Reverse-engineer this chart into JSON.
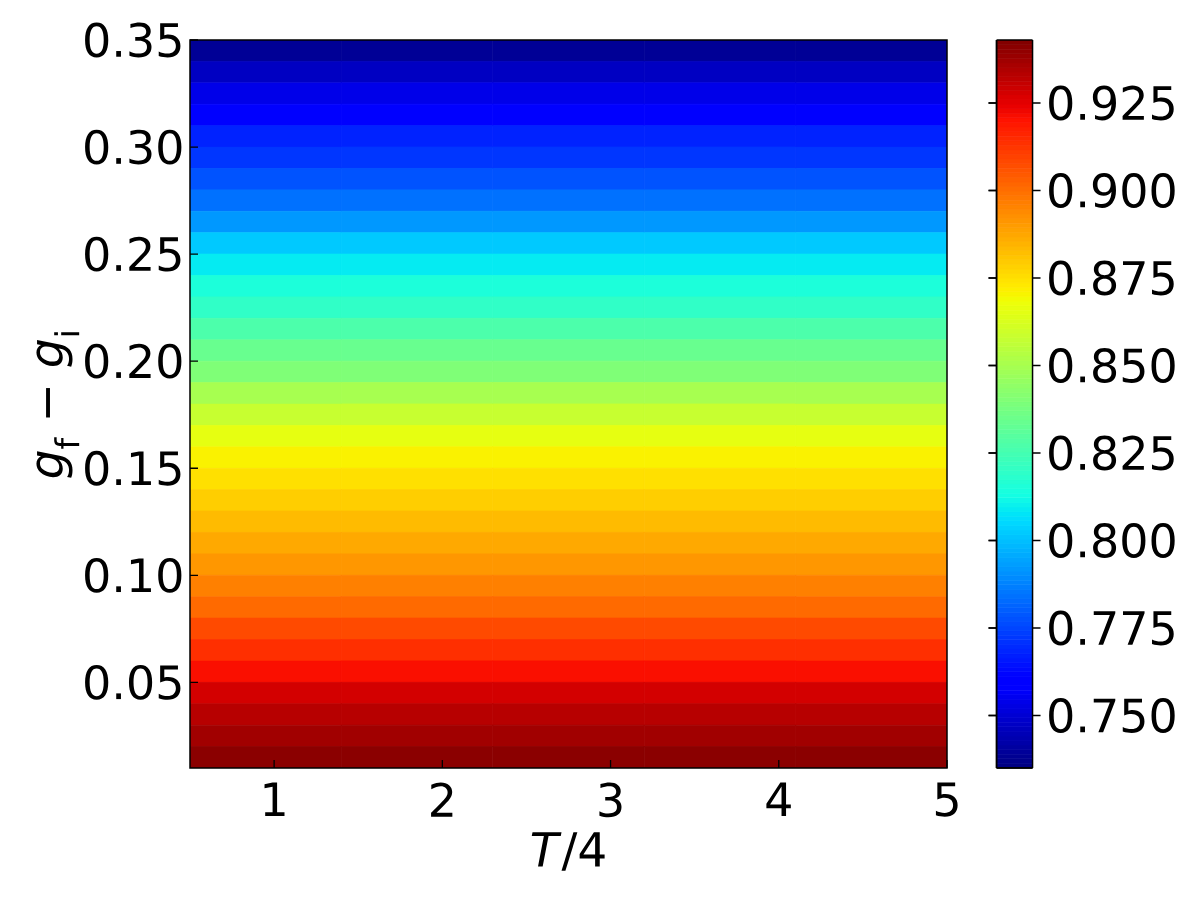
{
  "chart_data": {
    "type": "heatmap",
    "xlabel": "*T*/4",
    "ylabel": "*g*$_{f}$ − *g*$_{i}$",
    "x": [
      0.95,
      1.85,
      2.75,
      3.65,
      4.55
    ],
    "y": [
      0.345,
      0.335,
      0.325,
      0.315,
      0.305,
      0.295,
      0.285,
      0.275,
      0.265,
      0.255,
      0.245,
      0.235,
      0.225,
      0.215,
      0.205,
      0.195,
      0.185,
      0.175,
      0.165,
      0.155,
      0.145,
      0.135,
      0.125,
      0.115,
      0.105,
      0.095,
      0.085,
      0.075,
      0.065,
      0.055,
      0.045,
      0.035,
      0.025,
      0.015
    ],
    "cells": [
      [
        0.739,
        0.739,
        0.739,
        0.739,
        0.739
      ],
      [
        0.747,
        0.747,
        0.747,
        0.747,
        0.747
      ],
      [
        0.754,
        0.754,
        0.754,
        0.754,
        0.754
      ],
      [
        0.761,
        0.761,
        0.761,
        0.761,
        0.761
      ],
      [
        0.768,
        0.768,
        0.768,
        0.768,
        0.768
      ],
      [
        0.772,
        0.772,
        0.772,
        0.772,
        0.772
      ],
      [
        0.778,
        0.778,
        0.778,
        0.778,
        0.778
      ],
      [
        0.784,
        0.784,
        0.784,
        0.784,
        0.784
      ],
      [
        0.792,
        0.792,
        0.792,
        0.792,
        0.792
      ],
      [
        0.802,
        0.802,
        0.802,
        0.802,
        0.802
      ],
      [
        0.809,
        0.809,
        0.809,
        0.809,
        0.809
      ],
      [
        0.815,
        0.815,
        0.815,
        0.815,
        0.815
      ],
      [
        0.82,
        0.82,
        0.82,
        0.82,
        0.82
      ],
      [
        0.827,
        0.827,
        0.827,
        0.827,
        0.827
      ],
      [
        0.834,
        0.834,
        0.834,
        0.834,
        0.834
      ],
      [
        0.84,
        0.84,
        0.84,
        0.84,
        0.84
      ],
      [
        0.85,
        0.85,
        0.85,
        0.85,
        0.85
      ],
      [
        0.858,
        0.858,
        0.858,
        0.858,
        0.858
      ],
      [
        0.866,
        0.866,
        0.866,
        0.866,
        0.866
      ],
      [
        0.871,
        0.871,
        0.871,
        0.871,
        0.871
      ],
      [
        0.875,
        0.875,
        0.875,
        0.875,
        0.875
      ],
      [
        0.879,
        0.879,
        0.879,
        0.879,
        0.879
      ],
      [
        0.883,
        0.883,
        0.883,
        0.883,
        0.883
      ],
      [
        0.887,
        0.887,
        0.887,
        0.887,
        0.887
      ],
      [
        0.891,
        0.891,
        0.891,
        0.891,
        0.891
      ],
      [
        0.896,
        0.896,
        0.896,
        0.896,
        0.896
      ],
      [
        0.901,
        0.901,
        0.901,
        0.901,
        0.901
      ],
      [
        0.908,
        0.908,
        0.908,
        0.908,
        0.908
      ],
      [
        0.914,
        0.914,
        0.914,
        0.914,
        0.914
      ],
      [
        0.921,
        0.921,
        0.921,
        0.921,
        0.921
      ],
      [
        0.928,
        0.928,
        0.928,
        0.928,
        0.928
      ],
      [
        0.933,
        0.933,
        0.933,
        0.933,
        0.933
      ],
      [
        0.937,
        0.937,
        0.937,
        0.937,
        0.937
      ],
      [
        0.941,
        0.941,
        0.941,
        0.941,
        0.941
      ]
    ],
    "xlim": [
      0.5,
      5
    ],
    "ylim": [
      0.01,
      0.35
    ],
    "xticks": [
      1,
      2,
      3,
      4,
      5
    ],
    "yticks": [
      0.05,
      {
        "value": 0.1,
        "label": "0.10"
      },
      0.15,
      {
        "value": 0.2,
        "label": "0.20"
      },
      0.25,
      {
        "value": 0.3,
        "label": "0.30"
      },
      0.35
    ],
    "clim": [
      0.735,
      0.943
    ],
    "cticks": [
      {
        "value": 0.75,
        "label": "0.750"
      },
      0.775,
      {
        "value": 0.8,
        "label": "0.800"
      },
      0.825,
      {
        "value": 0.85,
        "label": "0.850"
      },
      0.875,
      {
        "value": 0.9,
        "label": "0.900"
      },
      0.925
    ]
  }
}
